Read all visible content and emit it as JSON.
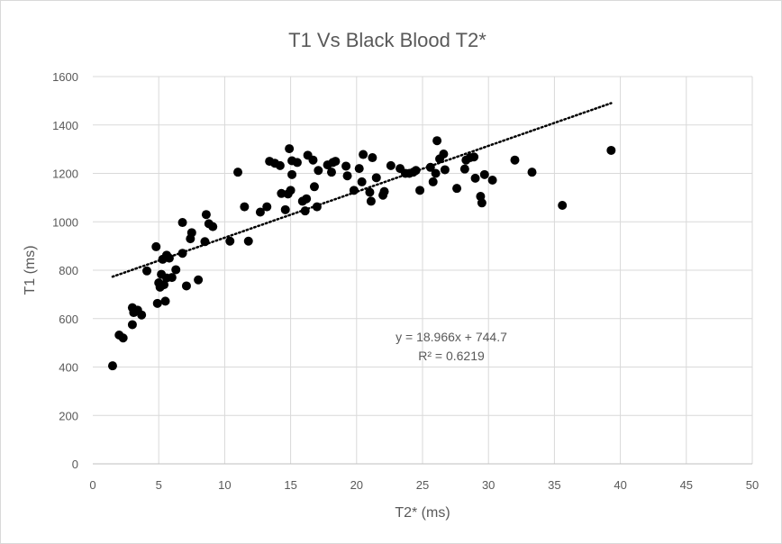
{
  "chart_data": {
    "type": "scatter",
    "title": "T1 Vs Black Blood T2*",
    "xlabel": "T2* (ms)",
    "ylabel": "T1 (ms)",
    "xlim": [
      0,
      50
    ],
    "ylim": [
      0,
      1600
    ],
    "x_ticks": [
      "0",
      "5",
      "10",
      "15",
      "20",
      "25",
      "30",
      "35",
      "40",
      "45",
      "50"
    ],
    "y_ticks": [
      "0",
      "200",
      "400",
      "600",
      "800",
      "1000",
      "1200",
      "1400",
      "1600"
    ],
    "grid": true,
    "marker_color": "#000000",
    "trendline": {
      "type": "linear",
      "slope": 18.966,
      "intercept": 744.7,
      "x_range": [
        1.5,
        39.3
      ],
      "style": "dotted",
      "equation_label": "y = 18.966x + 744.7",
      "r2_label": "R² = 0.6219"
    },
    "series": [
      {
        "name": "T1",
        "points": [
          [
            1.5,
            405
          ],
          [
            2.0,
            532
          ],
          [
            2.3,
            520
          ],
          [
            3.0,
            575
          ],
          [
            3.0,
            645
          ],
          [
            3.1,
            625
          ],
          [
            3.4,
            635
          ],
          [
            3.7,
            615
          ],
          [
            4.1,
            797
          ],
          [
            4.8,
            897
          ],
          [
            4.9,
            663
          ],
          [
            5.0,
            748
          ],
          [
            5.1,
            730
          ],
          [
            5.2,
            783
          ],
          [
            5.3,
            845
          ],
          [
            5.4,
            740
          ],
          [
            5.5,
            672
          ],
          [
            5.6,
            768
          ],
          [
            5.6,
            862
          ],
          [
            5.8,
            850
          ],
          [
            6.0,
            770
          ],
          [
            6.3,
            802
          ],
          [
            6.8,
            870
          ],
          [
            6.8,
            997
          ],
          [
            7.1,
            735
          ],
          [
            7.4,
            930
          ],
          [
            7.5,
            955
          ],
          [
            8.0,
            760
          ],
          [
            8.5,
            918
          ],
          [
            8.6,
            1030
          ],
          [
            8.8,
            992
          ],
          [
            9.1,
            980
          ],
          [
            10.4,
            920
          ],
          [
            11.0,
            1205
          ],
          [
            11.5,
            1062
          ],
          [
            11.8,
            920
          ],
          [
            12.7,
            1040
          ],
          [
            13.2,
            1062
          ],
          [
            13.4,
            1250
          ],
          [
            13.8,
            1242
          ],
          [
            14.2,
            1232
          ],
          [
            14.3,
            1117
          ],
          [
            14.6,
            1050
          ],
          [
            14.8,
            1115
          ],
          [
            14.9,
            1302
          ],
          [
            15.0,
            1130
          ],
          [
            15.1,
            1195
          ],
          [
            15.1,
            1252
          ],
          [
            15.5,
            1245
          ],
          [
            15.9,
            1085
          ],
          [
            16.1,
            1045
          ],
          [
            16.2,
            1095
          ],
          [
            16.3,
            1275
          ],
          [
            16.7,
            1255
          ],
          [
            16.8,
            1145
          ],
          [
            17.0,
            1062
          ],
          [
            17.1,
            1212
          ],
          [
            17.8,
            1235
          ],
          [
            18.1,
            1205
          ],
          [
            18.2,
            1245
          ],
          [
            18.4,
            1250
          ],
          [
            19.2,
            1230
          ],
          [
            19.3,
            1190
          ],
          [
            19.8,
            1130
          ],
          [
            20.2,
            1220
          ],
          [
            20.4,
            1165
          ],
          [
            20.5,
            1278
          ],
          [
            21.0,
            1122
          ],
          [
            21.1,
            1085
          ],
          [
            21.2,
            1265
          ],
          [
            21.5,
            1182
          ],
          [
            22.0,
            1110
          ],
          [
            22.1,
            1125
          ],
          [
            22.6,
            1232
          ],
          [
            23.3,
            1220
          ],
          [
            23.7,
            1200
          ],
          [
            24.0,
            1200
          ],
          [
            24.3,
            1205
          ],
          [
            24.5,
            1212
          ],
          [
            24.8,
            1130
          ],
          [
            25.6,
            1225
          ],
          [
            25.8,
            1165
          ],
          [
            26.0,
            1200
          ],
          [
            26.1,
            1335
          ],
          [
            26.3,
            1260
          ],
          [
            26.6,
            1280
          ],
          [
            26.7,
            1215
          ],
          [
            27.6,
            1138
          ],
          [
            28.2,
            1218
          ],
          [
            28.3,
            1255
          ],
          [
            28.6,
            1265
          ],
          [
            28.9,
            1268
          ],
          [
            29.0,
            1180
          ],
          [
            29.4,
            1105
          ],
          [
            29.5,
            1078
          ],
          [
            29.7,
            1195
          ],
          [
            30.3,
            1172
          ],
          [
            32.0,
            1255
          ],
          [
            33.3,
            1205
          ],
          [
            35.6,
            1068
          ],
          [
            39.3,
            1295
          ]
        ]
      }
    ]
  }
}
